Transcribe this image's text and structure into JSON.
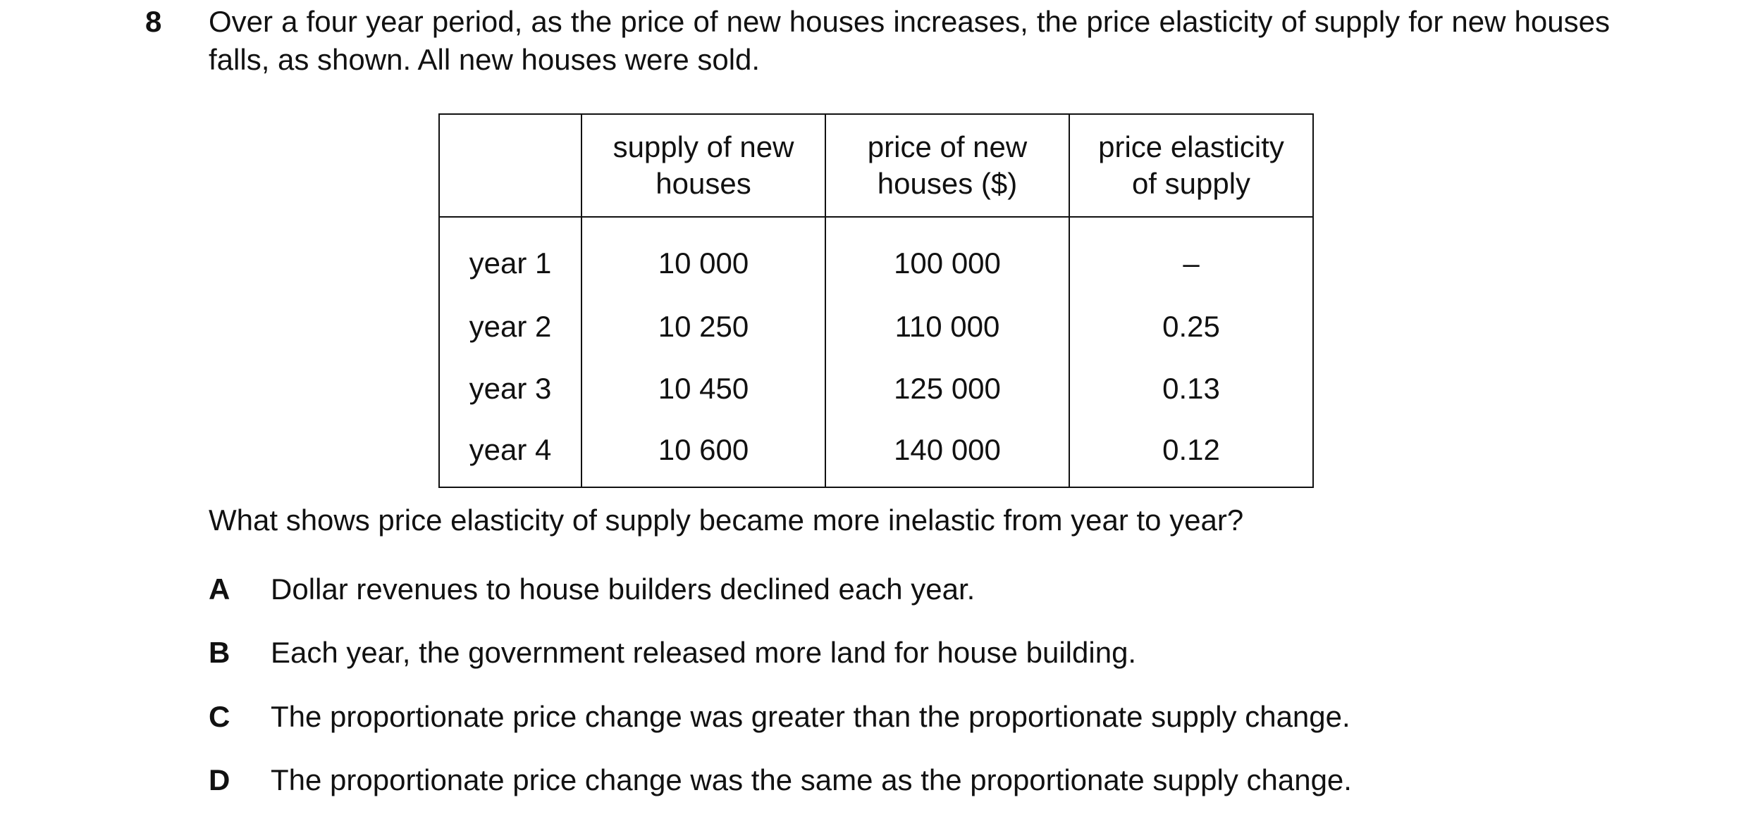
{
  "question": {
    "number": "8",
    "intro": "Over a four year period, as the price of new houses increases, the price elasticity of supply for new houses falls, as shown. All new houses were sold.",
    "prompt": "What shows price elasticity of supply became more inelastic from year to year?"
  },
  "table": {
    "headers": {
      "col0": "",
      "col1_line1": "supply of new",
      "col1_line2": "houses",
      "col2_line1": "price of new",
      "col2_line2": "houses ($)",
      "col3_line1": "price elasticity",
      "col3_line2": "of supply"
    },
    "rows": [
      {
        "label": "year 1",
        "supply": "10 000",
        "price": "100 000",
        "elasticity": "–"
      },
      {
        "label": "year 2",
        "supply": "10 250",
        "price": "110 000",
        "elasticity": "0.25"
      },
      {
        "label": "year 3",
        "supply": "10 450",
        "price": "125 000",
        "elasticity": "0.13"
      },
      {
        "label": "year 4",
        "supply": "10 600",
        "price": "140 000",
        "elasticity": "0.12"
      }
    ]
  },
  "options": [
    {
      "letter": "A",
      "text": "Dollar revenues to house builders declined each year."
    },
    {
      "letter": "B",
      "text": "Each year, the government released more land for house building."
    },
    {
      "letter": "C",
      "text": "The proportionate price change was greater than the proportionate supply change."
    },
    {
      "letter": "D",
      "text": "The proportionate price change was the same as the proportionate supply change."
    }
  ]
}
